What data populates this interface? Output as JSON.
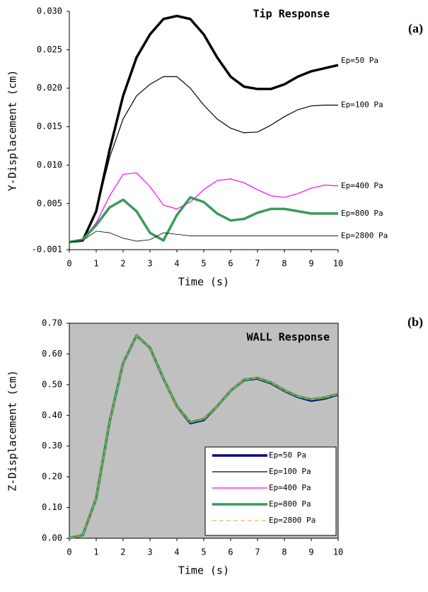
{
  "chart_data": [
    {
      "type": "line",
      "title": "Tip Response",
      "panel_label": "(a)",
      "x_label": "Time (s)",
      "y_label": "Y-Displacement (cm)",
      "x": [
        0,
        0.5,
        1,
        1.5,
        2,
        2.5,
        3,
        3.5,
        4,
        4.5,
        5,
        5.5,
        6,
        6.5,
        7,
        7.5,
        8,
        8.5,
        9,
        9.5,
        10
      ],
      "xlim": [
        0,
        10
      ],
      "xticks": [
        0,
        1,
        2,
        3,
        4,
        5,
        6,
        7,
        8,
        9,
        10
      ],
      "ylim": [
        -0.001,
        0.03
      ],
      "yticks": [
        -0.001,
        {
          "value": 0.005,
          "label": "0.005"
        },
        {
          "value": 0.01,
          "label": "0.010"
        },
        {
          "value": 0.015,
          "label": "0.015"
        },
        {
          "value": 0.02,
          "label": "0.020"
        },
        {
          "value": 0.025,
          "label": "0.025"
        },
        {
          "value": 0.03,
          "label": "0.030"
        }
      ],
      "grid": false,
      "legend": "line-end",
      "background": "#ffffff",
      "frame": false,
      "series": [
        {
          "name": "Ep=50 Pa",
          "color": "#000000",
          "line_width": 3.5,
          "values": [
            0,
            0.0002,
            0.004,
            0.012,
            0.019,
            0.024,
            0.027,
            0.029,
            0.0294,
            0.029,
            0.027,
            0.024,
            0.0215,
            0.0202,
            0.0199,
            0.0199,
            0.0205,
            0.0215,
            0.0222,
            0.0226,
            0.023
          ]
        },
        {
          "name": "Ep=100 Pa",
          "color": "#000000",
          "line_width": 1.2,
          "values": [
            0,
            0.0002,
            0.004,
            0.011,
            0.016,
            0.019,
            0.0205,
            0.0215,
            0.0215,
            0.02,
            0.0178,
            0.016,
            0.0148,
            0.0142,
            0.0143,
            0.0152,
            0.0163,
            0.0172,
            0.0177,
            0.0178,
            0.0178
          ]
        },
        {
          "name": "Ep=400 Pa",
          "color": "#ff00ff",
          "line_width": 1.2,
          "values": [
            0,
            0.0003,
            0.0025,
            0.006,
            0.0088,
            0.009,
            0.0072,
            0.0048,
            0.0043,
            0.0052,
            0.0068,
            0.008,
            0.0082,
            0.0077,
            0.0068,
            0.006,
            0.0058,
            0.0063,
            0.007,
            0.0074,
            0.0073
          ]
        },
        {
          "name": "Ep=800 Pa",
          "color": "#3a9a5a",
          "line_width": 3.5,
          "values": [
            0,
            0.0003,
            0.0022,
            0.0045,
            0.0055,
            0.004,
            0.0012,
            0.0002,
            0.0035,
            0.0058,
            0.0052,
            0.0037,
            0.0028,
            0.003,
            0.0038,
            0.0043,
            0.0043,
            0.004,
            0.0037,
            0.0037,
            0.0037
          ]
        },
        {
          "name": "Ep=2800 Pa",
          "color": "#000000",
          "line_width": 0.8,
          "values": [
            0,
            0.0002,
            0.0014,
            0.0012,
            0.0005,
            0.0001,
            0.0003,
            0.0012,
            0.001,
            0.0008,
            0.0008,
            0.0008,
            0.0008,
            0.0008,
            0.0008,
            0.0008,
            0.0008,
            0.0008,
            0.0008,
            0.0008,
            0.0008
          ]
        }
      ]
    },
    {
      "type": "line",
      "title": "WALL Response",
      "panel_label": "(b)",
      "x_label": "Time (s)",
      "y_label": "Z-Displacement (cm)",
      "x": [
        0,
        0.5,
        1,
        1.5,
        2,
        2.5,
        3,
        3.5,
        4,
        4.5,
        5,
        5.5,
        6,
        6.5,
        7,
        7.5,
        8,
        8.5,
        9,
        9.5,
        10
      ],
      "xlim": [
        0,
        10
      ],
      "xticks": [
        0,
        1,
        2,
        3,
        4,
        5,
        6,
        7,
        8,
        9,
        10
      ],
      "ylim": [
        0,
        0.7
      ],
      "yticks": [
        {
          "value": 0,
          "label": "0.00"
        },
        {
          "value": 0.1,
          "label": "0.10"
        },
        {
          "value": 0.2,
          "label": "0.20"
        },
        {
          "value": 0.3,
          "label": "0.30"
        },
        {
          "value": 0.4,
          "label": "0.40"
        },
        {
          "value": 0.5,
          "label": "0.50"
        },
        {
          "value": 0.6,
          "label": "0.60"
        },
        {
          "value": 0.7,
          "label": "0.70"
        }
      ],
      "grid": false,
      "legend": "lower right",
      "background": "#c0c0c0",
      "frame": true,
      "series": [
        {
          "name": "Ep=50 Pa",
          "color": "#000080",
          "line_width": 3.5,
          "values": [
            0,
            0.01,
            0.13,
            0.38,
            0.57,
            0.66,
            0.62,
            0.52,
            0.43,
            0.375,
            0.385,
            0.43,
            0.48,
            0.515,
            0.52,
            0.505,
            0.48,
            0.46,
            0.448,
            0.455,
            0.468
          ]
        },
        {
          "name": "Ep=100 Pa",
          "color": "#000000",
          "line_width": 1.2,
          "values": [
            0,
            0.01,
            0.13,
            0.38,
            0.57,
            0.66,
            0.62,
            0.52,
            0.43,
            0.376,
            0.386,
            0.43,
            0.48,
            0.515,
            0.52,
            0.505,
            0.48,
            0.46,
            0.45,
            0.456,
            0.469
          ]
        },
        {
          "name": "Ep=400 Pa",
          "color": "#ff00ff",
          "line_width": 1.2,
          "values": [
            0,
            0.01,
            0.13,
            0.38,
            0.57,
            0.66,
            0.62,
            0.52,
            0.43,
            0.377,
            0.387,
            0.43,
            0.48,
            0.515,
            0.52,
            0.505,
            0.48,
            0.46,
            0.45,
            0.457,
            0.469
          ]
        },
        {
          "name": "Ep=800 Pa",
          "color": "#3a9a5a",
          "line_width": 3.5,
          "values": [
            0,
            0.01,
            0.13,
            0.38,
            0.57,
            0.66,
            0.62,
            0.52,
            0.43,
            0.378,
            0.388,
            0.43,
            0.48,
            0.516,
            0.522,
            0.507,
            0.482,
            0.462,
            0.452,
            0.458,
            0.47
          ]
        },
        {
          "name": "Ep=2800 Pa",
          "color": "#f0a030",
          "line_width": 1,
          "line_style": "dashed",
          "values": [
            0,
            0.01,
            0.13,
            0.38,
            0.57,
            0.66,
            0.62,
            0.52,
            0.43,
            0.378,
            0.388,
            0.43,
            0.48,
            0.516,
            0.522,
            0.507,
            0.482,
            0.462,
            0.452,
            0.458,
            0.47
          ]
        }
      ]
    }
  ]
}
